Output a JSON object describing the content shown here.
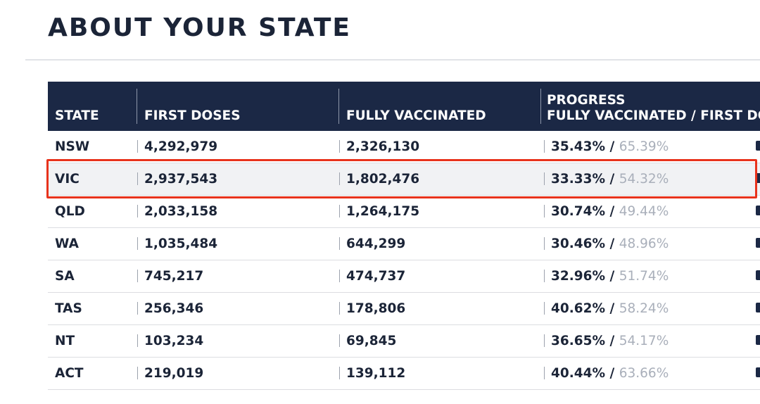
{
  "page": {
    "title": "ABOUT YOUR STATE"
  },
  "table": {
    "headers": {
      "state": "STATE",
      "first_doses": "FIRST DOSES",
      "fully_vaccinated": "FULLY VACCINATED",
      "progress_line1": "PROGRESS",
      "progress_line2": "FULLY VACCINATED / FIRST DOSE"
    },
    "separator": "/",
    "rows": [
      {
        "state": "NSW",
        "first_doses": "4,292,979",
        "fully_vaccinated": "2,326,130",
        "progress_full": "35.43%",
        "progress_first": "65.39%"
      },
      {
        "state": "VIC",
        "first_doses": "2,937,543",
        "fully_vaccinated": "1,802,476",
        "progress_full": "33.33%",
        "progress_first": "54.32%"
      },
      {
        "state": "QLD",
        "first_doses": "2,033,158",
        "fully_vaccinated": "1,264,175",
        "progress_full": "30.74%",
        "progress_first": "49.44%"
      },
      {
        "state": "WA",
        "first_doses": "1,035,484",
        "fully_vaccinated": "644,299",
        "progress_full": "30.46%",
        "progress_first": "48.96%"
      },
      {
        "state": "SA",
        "first_doses": "745,217",
        "fully_vaccinated": "474,737",
        "progress_full": "32.96%",
        "progress_first": "51.74%"
      },
      {
        "state": "TAS",
        "first_doses": "256,346",
        "fully_vaccinated": "178,806",
        "progress_full": "40.62%",
        "progress_first": "58.24%"
      },
      {
        "state": "NT",
        "first_doses": "103,234",
        "fully_vaccinated": "69,845",
        "progress_full": "36.65%",
        "progress_first": "54.17%"
      },
      {
        "state": "ACT",
        "first_doses": "219,019",
        "fully_vaccinated": "139,112",
        "progress_full": "40.44%",
        "progress_first": "63.66%"
      }
    ]
  },
  "highlight": {
    "row_state": "VIC",
    "color": "#e8331c"
  },
  "colors": {
    "header_bg": "#1b2845",
    "text": "#1b2437",
    "muted": "#a9afba"
  }
}
